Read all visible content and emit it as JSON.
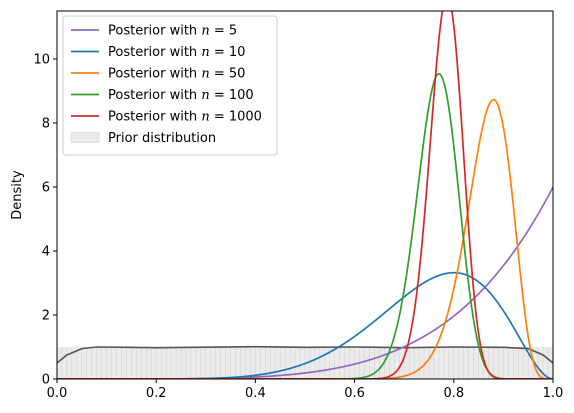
{
  "chart_data": {
    "type": "line",
    "title": "",
    "xlabel": "",
    "ylabel": "Density",
    "xlim": [
      0,
      1
    ],
    "ylim": [
      0,
      11.5
    ],
    "x_ticks": [
      0.0,
      0.2,
      0.4,
      0.6,
      0.8,
      1.0
    ],
    "x_tick_labels": [
      "0.0",
      "0.2",
      "0.4",
      "0.6",
      "0.8",
      "1.0"
    ],
    "y_ticks": [
      0,
      2,
      4,
      6,
      8,
      10
    ],
    "y_tick_labels": [
      "0",
      "2",
      "4",
      "6",
      "8",
      "10"
    ],
    "grid": false,
    "legend_position": "top-left",
    "series": [
      {
        "name": "Posterior with n = 5",
        "legend_prefix": "Posterior with ",
        "legend_var": "n",
        "legend_suffix": " = 5",
        "color": "#9467bd",
        "distribution": "beta",
        "alpha": 6,
        "beta": 1
      },
      {
        "name": "Posterior with n = 10",
        "legend_prefix": "Posterior with ",
        "legend_var": "n",
        "legend_suffix": " = 10",
        "color": "#1f77b4",
        "distribution": "beta",
        "alpha": 9,
        "beta": 3
      },
      {
        "name": "Posterior with n = 50",
        "legend_prefix": "Posterior with ",
        "legend_var": "n",
        "legend_suffix": " = 50",
        "color": "#ff7f0e",
        "distribution": "beta",
        "alpha": 45,
        "beta": 7
      },
      {
        "name": "Posterior with n = 100",
        "legend_prefix": "Posterior with ",
        "legend_var": "n",
        "legend_suffix": " = 100",
        "color": "#2ca02c",
        "distribution": "beta",
        "alpha": 78,
        "beta": 24
      },
      {
        "name": "Posterior with n = 1000",
        "legend_prefix": "Posterior with ",
        "legend_var": "n",
        "legend_suffix": " = 1000",
        "color": "#d62728",
        "distribution": "beta",
        "alpha": 119,
        "beta": 33
      }
    ],
    "prior": {
      "name": "Prior distribution",
      "distribution": "uniform",
      "fill_color": "#d3d3d3",
      "line_color": "#555555",
      "line_x": [
        0.0,
        0.02,
        0.05,
        0.08,
        0.2,
        0.4,
        0.5,
        0.6,
        0.7,
        0.8,
        0.9,
        0.95,
        0.98,
        1.0
      ],
      "line_y": [
        0.5,
        0.75,
        0.95,
        1.0,
        0.98,
        1.01,
        0.99,
        1.0,
        0.98,
        1.0,
        0.99,
        0.95,
        0.75,
        0.5
      ]
    }
  }
}
